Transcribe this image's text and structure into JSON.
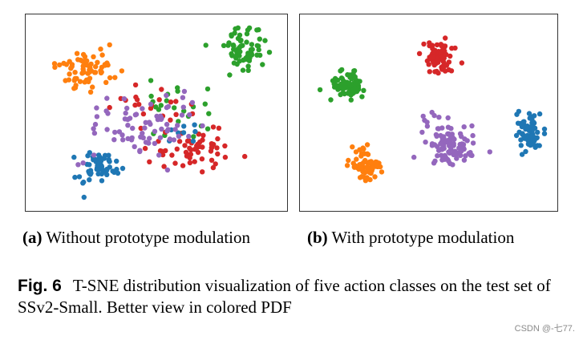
{
  "colors": {
    "blue": "#1f77b4",
    "orange": "#ff7f0e",
    "green": "#2ca02c",
    "red": "#d62728",
    "purple": "#9467bd"
  },
  "chart_data": [
    {
      "type": "scatter",
      "panel_label": "(a)",
      "caption": "Without prototype modulation",
      "grid": false,
      "legend": "none",
      "clusters": [
        {
          "color": "orange",
          "center": [
            0.22,
            0.26
          ],
          "spread": [
            0.1,
            0.09
          ],
          "count": 70
        },
        {
          "color": "green",
          "center": [
            0.85,
            0.15
          ],
          "spread": [
            0.09,
            0.1
          ],
          "count": 65
        },
        {
          "color": "green",
          "center": [
            0.62,
            0.48
          ],
          "spread": [
            0.18,
            0.14
          ],
          "count": 25
        },
        {
          "color": "red",
          "center": [
            0.66,
            0.7
          ],
          "spread": [
            0.14,
            0.1
          ],
          "count": 60
        },
        {
          "color": "red",
          "center": [
            0.48,
            0.45
          ],
          "spread": [
            0.12,
            0.1
          ],
          "count": 20
        },
        {
          "color": "blue",
          "center": [
            0.27,
            0.8
          ],
          "spread": [
            0.07,
            0.08
          ],
          "count": 55
        },
        {
          "color": "blue",
          "center": [
            0.58,
            0.6
          ],
          "spread": [
            0.1,
            0.08
          ],
          "count": 8
        },
        {
          "color": "purple",
          "center": [
            0.43,
            0.58
          ],
          "spread": [
            0.18,
            0.16
          ],
          "count": 75
        }
      ]
    },
    {
      "type": "scatter",
      "panel_label": "(b)",
      "caption": "With prototype modulation",
      "grid": false,
      "legend": "none",
      "clusters": [
        {
          "color": "green",
          "center": [
            0.17,
            0.34
          ],
          "spread": [
            0.06,
            0.06
          ],
          "count": 75
        },
        {
          "color": "red",
          "center": [
            0.54,
            0.19
          ],
          "spread": [
            0.05,
            0.08
          ],
          "count": 75
        },
        {
          "color": "blue",
          "center": [
            0.92,
            0.62
          ],
          "spread": [
            0.04,
            0.09
          ],
          "count": 70
        },
        {
          "color": "orange",
          "center": [
            0.24,
            0.79
          ],
          "spread": [
            0.05,
            0.07
          ],
          "count": 70
        },
        {
          "color": "purple",
          "center": [
            0.59,
            0.69
          ],
          "spread": [
            0.08,
            0.08
          ],
          "count": 80
        },
        {
          "color": "purple",
          "center": [
            0.52,
            0.55
          ],
          "spread": [
            0.06,
            0.05
          ],
          "count": 12
        }
      ]
    }
  ],
  "figure_caption": {
    "label": "Fig. 6",
    "text": "T-SNE distribution visualization of five action classes on the test set of SSv2-Small. Better view in colored PDF"
  },
  "watermark": "CSDN @-七77."
}
